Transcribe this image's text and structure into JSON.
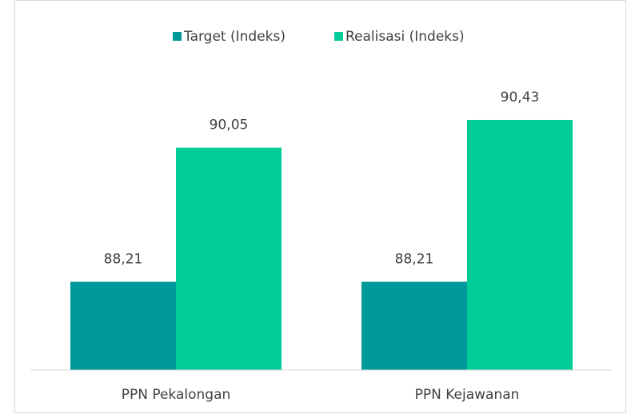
{
  "chart_data": {
    "type": "bar",
    "categories": [
      "PPN Pekalongan",
      "PPN Kejawanan"
    ],
    "series": [
      {
        "name": "Target (Indeks)",
        "color": "#009999",
        "values": [
          88.21,
          88.21
        ],
        "value_labels": [
          "88,21",
          "88,21"
        ]
      },
      {
        "name": "Realisasi (Indeks)",
        "color": "#00cc99",
        "values": [
          90.05,
          90.43
        ],
        "value_labels": [
          "90,05",
          "90,43"
        ]
      }
    ],
    "ylim": [
      87,
      91
    ],
    "legend": "top"
  }
}
